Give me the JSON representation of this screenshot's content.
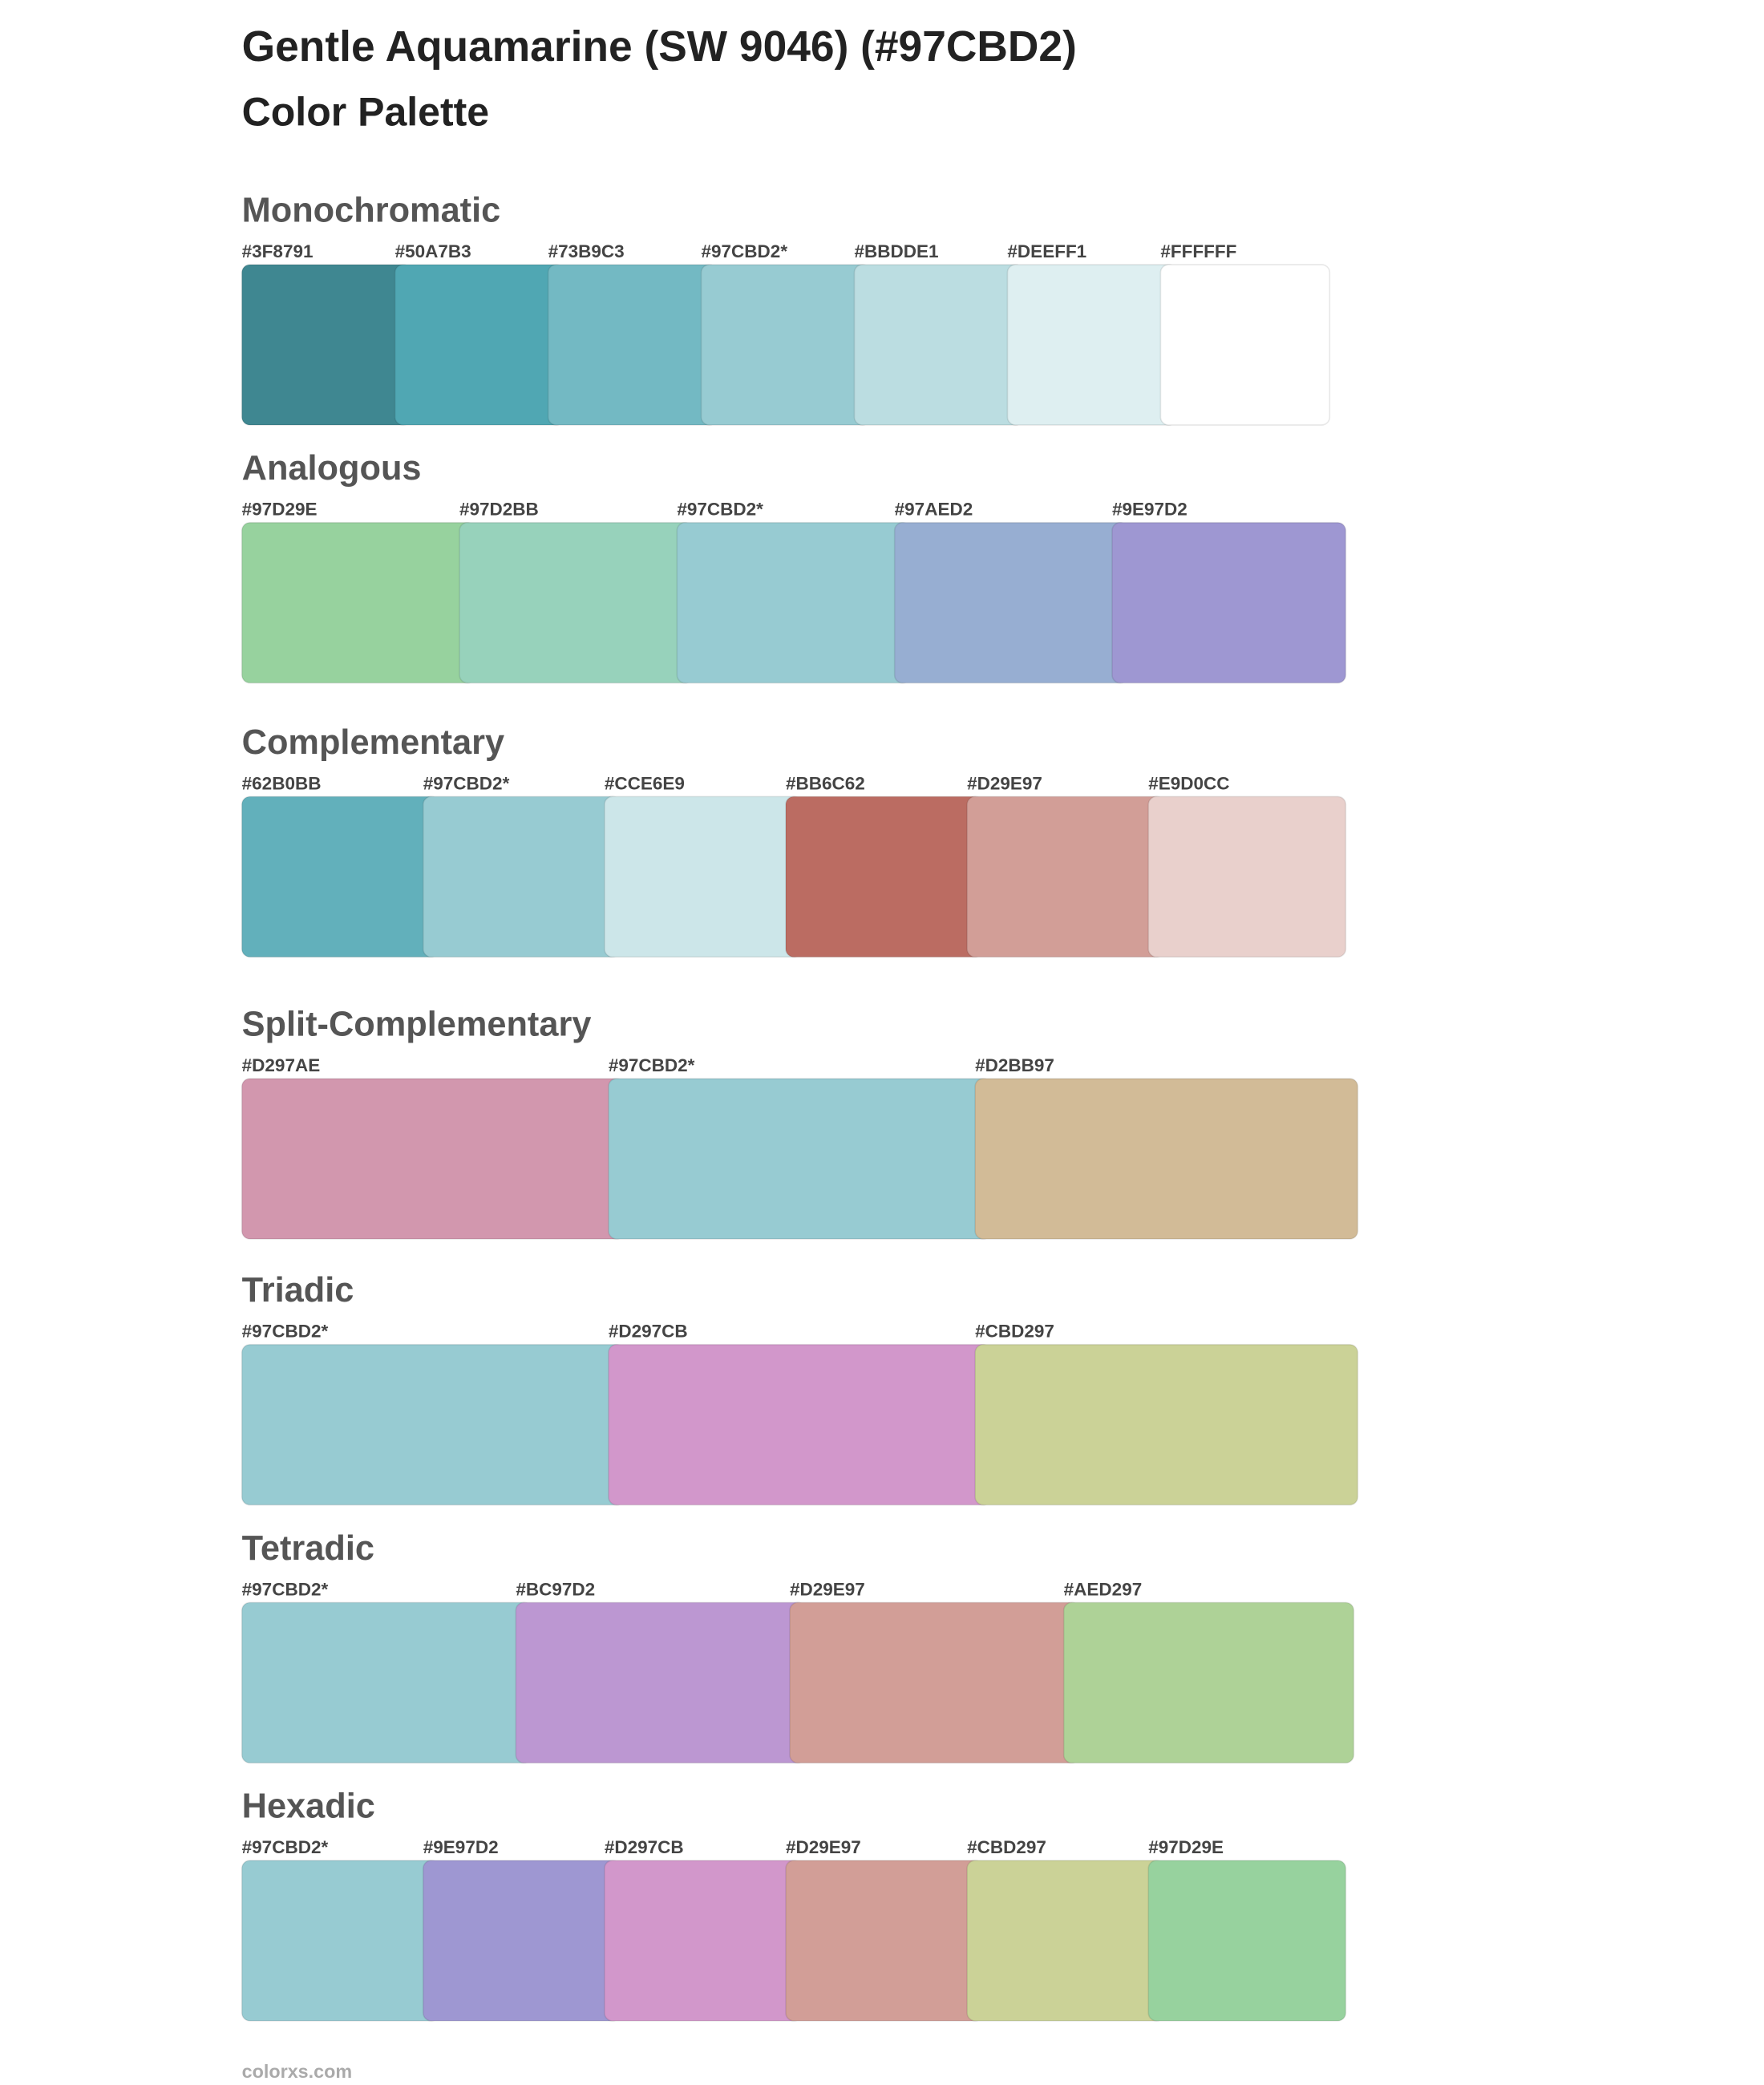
{
  "header": {
    "title": "Gentle Aquamarine (SW 9046) (#97CBD2)",
    "subtitle": "Color Palette"
  },
  "sections": [
    {
      "name": "Monochromatic",
      "swatches": [
        {
          "label": "#3F8791",
          "color": "#3F8791"
        },
        {
          "label": "#50A7B3",
          "color": "#50A7B3"
        },
        {
          "label": "#73B9C3",
          "color": "#73B9C3"
        },
        {
          "label": "#97CBD2*",
          "color": "#97CBD2"
        },
        {
          "label": "#BBDDE1",
          "color": "#BBDDE1"
        },
        {
          "label": "#DEEFF1",
          "color": "#DEEFF1"
        },
        {
          "label": "#FFFFFF",
          "color": "#FFFFFF"
        }
      ]
    },
    {
      "name": "Analogous",
      "swatches": [
        {
          "label": "#97D29E",
          "color": "#97D29E"
        },
        {
          "label": "#97D2BB",
          "color": "#97D2BB"
        },
        {
          "label": "#97CBD2*",
          "color": "#97CBD2"
        },
        {
          "label": "#97AED2",
          "color": "#97AED2"
        },
        {
          "label": "#9E97D2",
          "color": "#9E97D2"
        }
      ]
    },
    {
      "name": "Complementary",
      "swatches": [
        {
          "label": "#62B0BB",
          "color": "#62B0BB"
        },
        {
          "label": "#97CBD2*",
          "color": "#97CBD2"
        },
        {
          "label": "#CCE6E9",
          "color": "#CCE6E9"
        },
        {
          "label": "#BB6C62",
          "color": "#BB6C62"
        },
        {
          "label": "#D29E97",
          "color": "#D29E97"
        },
        {
          "label": "#E9D0CC",
          "color": "#E9D0CC"
        }
      ]
    },
    {
      "name": "Split-Complementary",
      "swatches": [
        {
          "label": "#D297AE",
          "color": "#D297AE"
        },
        {
          "label": "#97CBD2*",
          "color": "#97CBD2"
        },
        {
          "label": "#D2BB97",
          "color": "#D2BB97"
        }
      ]
    },
    {
      "name": "Triadic",
      "swatches": [
        {
          "label": "#97CBD2*",
          "color": "#97CBD2"
        },
        {
          "label": "#D297CB",
          "color": "#D297CB"
        },
        {
          "label": "#CBD297",
          "color": "#CBD297"
        }
      ]
    },
    {
      "name": "Tetradic",
      "swatches": [
        {
          "label": "#97CBD2*",
          "color": "#97CBD2"
        },
        {
          "label": "#BC97D2",
          "color": "#BC97D2"
        },
        {
          "label": "#D29E97",
          "color": "#D29E97"
        },
        {
          "label": "#AED297",
          "color": "#AED297"
        }
      ]
    },
    {
      "name": "Hexadic",
      "swatches": [
        {
          "label": "#97CBD2*",
          "color": "#97CBD2"
        },
        {
          "label": "#9E97D2",
          "color": "#9E97D2"
        },
        {
          "label": "#D297CB",
          "color": "#D297CB"
        },
        {
          "label": "#D29E97",
          "color": "#D29E97"
        },
        {
          "label": "#CBD297",
          "color": "#CBD297"
        },
        {
          "label": "#97D29E",
          "color": "#97D29E"
        }
      ]
    }
  ],
  "footer": "colorxs.com"
}
